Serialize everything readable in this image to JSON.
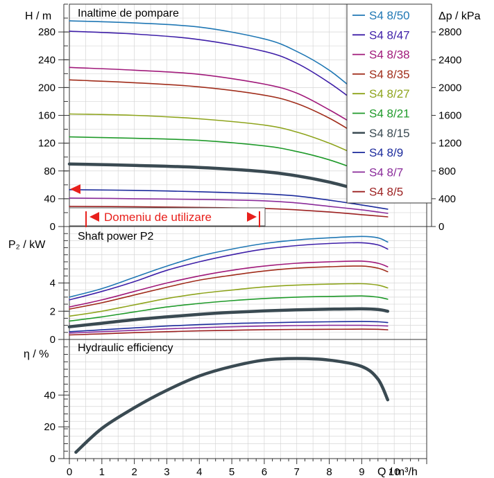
{
  "chart_data": [
    {
      "type": "line",
      "title": "Inaltime de pompare",
      "ylabel": "H / m",
      "ylabel_right": "Δp / kPa",
      "ylim": [
        0,
        320
      ],
      "y_ticks": [
        0,
        40,
        80,
        120,
        160,
        200,
        240,
        280
      ],
      "y_right_ticks": [
        0,
        400,
        800,
        1200,
        1600,
        2000,
        2400,
        2800
      ],
      "xlim": [
        0,
        11
      ],
      "grid": true,
      "legend_position": "top-right",
      "annotation": "Domeniu de utilizare",
      "series": [
        {
          "name": "S4 8/50",
          "color": "#1f77b4",
          "x": [
            0,
            2,
            4,
            6,
            7,
            8,
            9,
            9.8
          ],
          "values": [
            296,
            293,
            287,
            270,
            252,
            225,
            188,
            164
          ]
        },
        {
          "name": "S4 8/47",
          "color": "#3e1fa8",
          "x": [
            0,
            2,
            4,
            6,
            7,
            8,
            9,
            9.8
          ],
          "values": [
            281,
            277,
            269,
            252,
            235,
            207,
            173,
            148
          ]
        },
        {
          "name": "S4 8/38",
          "color": "#a0197a",
          "x": [
            0,
            2,
            4,
            6,
            7,
            8,
            9,
            9.8
          ],
          "values": [
            229,
            225,
            219,
            205,
            192,
            168,
            141,
            124
          ]
        },
        {
          "name": "S4 8/35",
          "color": "#a02c1a",
          "x": [
            0,
            2,
            4,
            6,
            7,
            8,
            9,
            9.8
          ],
          "values": [
            211,
            207,
            201,
            189,
            177,
            156,
            129,
            113
          ]
        },
        {
          "name": "S4 8/27",
          "color": "#8ea41c",
          "x": [
            0,
            2,
            4,
            6,
            7,
            8,
            9,
            9.8
          ],
          "values": [
            162,
            160,
            155,
            146,
            136,
            120,
            100,
            87
          ]
        },
        {
          "name": "S4 8/21",
          "color": "#1f9a2a",
          "x": [
            0,
            2,
            4,
            6,
            7,
            8,
            9,
            9.8
          ],
          "values": [
            129,
            127,
            124,
            116,
            108,
            96,
            80,
            70
          ]
        },
        {
          "name": "S4 8/15",
          "color": "#3a4a52",
          "thick": true,
          "x": [
            0,
            2,
            4,
            6,
            7,
            8,
            9,
            9.8
          ],
          "values": [
            90,
            88,
            85,
            79,
            73,
            64,
            52,
            44
          ]
        },
        {
          "name": "S4 8/9",
          "color": "#1b2a9c",
          "x": [
            0,
            2,
            4,
            6,
            7,
            8,
            9,
            9.8
          ],
          "values": [
            53,
            52,
            50,
            47,
            44,
            38,
            31,
            25
          ]
        },
        {
          "name": "S4 8/7",
          "color": "#8a2b9a",
          "x": [
            0,
            2,
            4,
            6,
            7,
            8,
            9,
            9.8
          ],
          "values": [
            41,
            40,
            39,
            37,
            34,
            29,
            24,
            19
          ]
        },
        {
          "name": "S4 8/5",
          "color": "#9c2020",
          "x": [
            0,
            2,
            4,
            6,
            7,
            8,
            9,
            9.8
          ],
          "values": [
            29,
            28.5,
            27.5,
            26,
            24,
            21,
            17,
            14
          ]
        }
      ]
    },
    {
      "type": "line",
      "title": "Shaft power P2",
      "ylabel": "P₂ / kW",
      "ylim": [
        0,
        8
      ],
      "y_ticks": [
        0,
        2,
        4
      ],
      "xlim": [
        0,
        11
      ],
      "grid": true,
      "series": [
        {
          "name": "S4 8/50",
          "color": "#1f77b4",
          "x": [
            0,
            1,
            2,
            3,
            4,
            5,
            6,
            7,
            8,
            9,
            9.5,
            9.8
          ],
          "values": [
            3.0,
            3.6,
            4.4,
            5.2,
            5.9,
            6.4,
            6.8,
            7.05,
            7.2,
            7.3,
            7.2,
            6.9
          ]
        },
        {
          "name": "S4 8/47",
          "color": "#3e1fa8",
          "x": [
            0,
            1,
            2,
            3,
            4,
            5,
            6,
            7,
            8,
            9,
            9.5,
            9.8
          ],
          "values": [
            2.8,
            3.4,
            4.1,
            4.9,
            5.5,
            6.0,
            6.4,
            6.65,
            6.8,
            6.85,
            6.7,
            6.4
          ]
        },
        {
          "name": "S4 8/38",
          "color": "#a0197a",
          "x": [
            0,
            1,
            2,
            3,
            4,
            5,
            6,
            7,
            8,
            9,
            9.5,
            9.8
          ],
          "values": [
            2.3,
            2.8,
            3.4,
            4.0,
            4.5,
            4.9,
            5.2,
            5.4,
            5.5,
            5.55,
            5.4,
            5.15
          ]
        },
        {
          "name": "S4 8/35",
          "color": "#a02c1a",
          "x": [
            0,
            1,
            2,
            3,
            4,
            5,
            6,
            7,
            8,
            9,
            9.5,
            9.8
          ],
          "values": [
            2.15,
            2.6,
            3.15,
            3.7,
            4.2,
            4.55,
            4.85,
            5.05,
            5.15,
            5.2,
            5.05,
            4.8
          ]
        },
        {
          "name": "S4 8/27",
          "color": "#8ea41c",
          "x": [
            0,
            1,
            2,
            3,
            4,
            5,
            6,
            7,
            8,
            9,
            9.5,
            9.8
          ],
          "values": [
            1.65,
            2.0,
            2.45,
            2.9,
            3.25,
            3.5,
            3.72,
            3.85,
            3.92,
            3.95,
            3.85,
            3.65
          ]
        },
        {
          "name": "S4 8/21",
          "color": "#1f9a2a",
          "x": [
            0,
            1,
            2,
            3,
            4,
            5,
            6,
            7,
            8,
            9,
            9.5,
            9.8
          ],
          "values": [
            1.3,
            1.6,
            1.95,
            2.3,
            2.55,
            2.75,
            2.9,
            3.0,
            3.05,
            3.08,
            3.0,
            2.85
          ]
        },
        {
          "name": "S4 8/15",
          "color": "#3a4a52",
          "thick": true,
          "x": [
            0,
            1,
            2,
            3,
            4,
            5,
            6,
            7,
            8,
            9,
            9.5,
            9.8
          ],
          "values": [
            0.9,
            1.15,
            1.4,
            1.6,
            1.78,
            1.92,
            2.02,
            2.1,
            2.15,
            2.17,
            2.12,
            2.0
          ]
        },
        {
          "name": "S4 8/9",
          "color": "#1b2a9c",
          "x": [
            0,
            1,
            2,
            3,
            4,
            5,
            6,
            7,
            8,
            9,
            9.5,
            9.8
          ],
          "values": [
            0.55,
            0.68,
            0.82,
            0.95,
            1.05,
            1.13,
            1.18,
            1.22,
            1.25,
            1.27,
            1.25,
            1.2
          ]
        },
        {
          "name": "S4 8/7",
          "color": "#8a2b9a",
          "x": [
            0,
            1,
            2,
            3,
            4,
            5,
            6,
            7,
            8,
            9,
            9.5,
            9.8
          ],
          "values": [
            0.45,
            0.55,
            0.65,
            0.75,
            0.83,
            0.9,
            0.95,
            0.98,
            1.0,
            1.0,
            0.98,
            0.95
          ]
        },
        {
          "name": "S4 8/5",
          "color": "#9c2020",
          "x": [
            0,
            1,
            2,
            3,
            4,
            5,
            6,
            7,
            8,
            9,
            9.5,
            9.8
          ],
          "values": [
            0.32,
            0.4,
            0.48,
            0.55,
            0.61,
            0.65,
            0.69,
            0.71,
            0.72,
            0.73,
            0.72,
            0.68
          ]
        }
      ]
    },
    {
      "type": "line",
      "title": "Hydraulic efficiency",
      "ylabel": "η / %",
      "ylim": [
        0,
        75
      ],
      "y_ticks": [
        0,
        20,
        40
      ],
      "xlabel": "Q / m³/h",
      "x_ticks": [
        0,
        1,
        2,
        3,
        4,
        5,
        6,
        7,
        8,
        9,
        10
      ],
      "xlim": [
        0,
        11
      ],
      "grid": true,
      "series": [
        {
          "color": "#3a4a52",
          "thick": true,
          "x": [
            0.2,
            1,
            2,
            3,
            4,
            5,
            6,
            7,
            8,
            9,
            9.5,
            9.8
          ],
          "values": [
            4,
            19,
            32,
            43,
            52,
            58,
            62,
            63,
            62,
            58,
            50,
            37
          ]
        }
      ]
    }
  ]
}
